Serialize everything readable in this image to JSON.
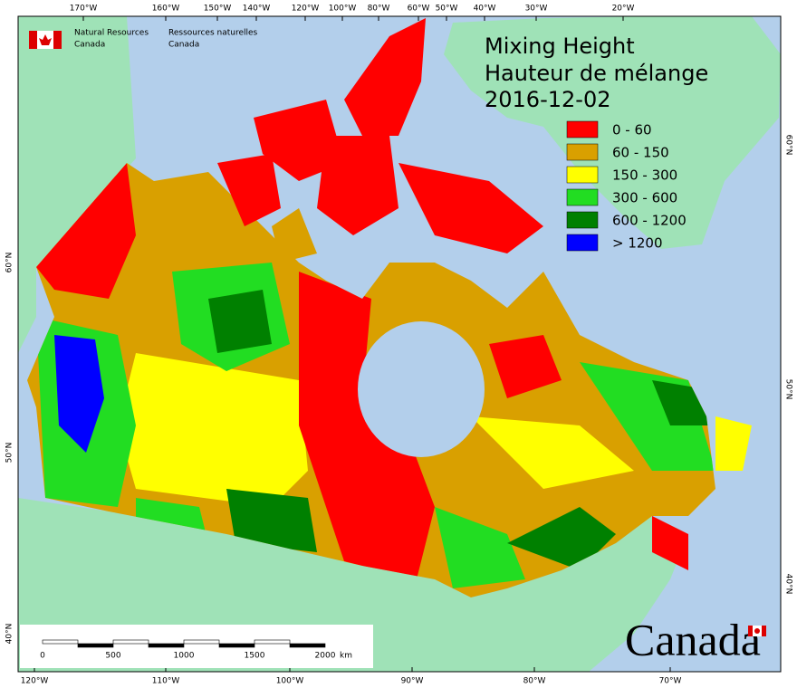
{
  "header": {
    "agency_en": [
      "Natural Resources",
      "Canada"
    ],
    "agency_fr": [
      "Ressources naturelles",
      "Canada"
    ]
  },
  "title": {
    "line1": "Mixing Height",
    "line2": "Hauteur de mélange",
    "date": "2016-12-02"
  },
  "legend": [
    {
      "label": "0 - 60",
      "color": "#ff0000"
    },
    {
      "label": "60 - 150",
      "color": "#d9a000"
    },
    {
      "label": "150 - 300",
      "color": "#ffff00"
    },
    {
      "label": "300 - 600",
      "color": "#22dd22"
    },
    {
      "label": "600 - 1200",
      "color": "#008000"
    },
    {
      "label": "> 1200",
      "color": "#0000ff"
    }
  ],
  "graticule": {
    "top": [
      "170°W",
      "160°W",
      "150°W",
      "140°W",
      "120°W",
      "100°W",
      "80°W",
      "60°W",
      "50°W",
      "40°W",
      "30°W",
      "20°W"
    ],
    "bottom": [
      "120°W",
      "110°W",
      "100°W",
      "90°W",
      "80°W",
      "70°W"
    ],
    "left": [
      "60°N",
      "50°N",
      "40°N"
    ],
    "right": [
      "60°N",
      "50°N",
      "40°N"
    ]
  },
  "scale_bar": {
    "labels": [
      "0",
      "500",
      "1000",
      "1500",
      "2000"
    ],
    "unit": "km"
  },
  "wordmark": "Canada"
}
